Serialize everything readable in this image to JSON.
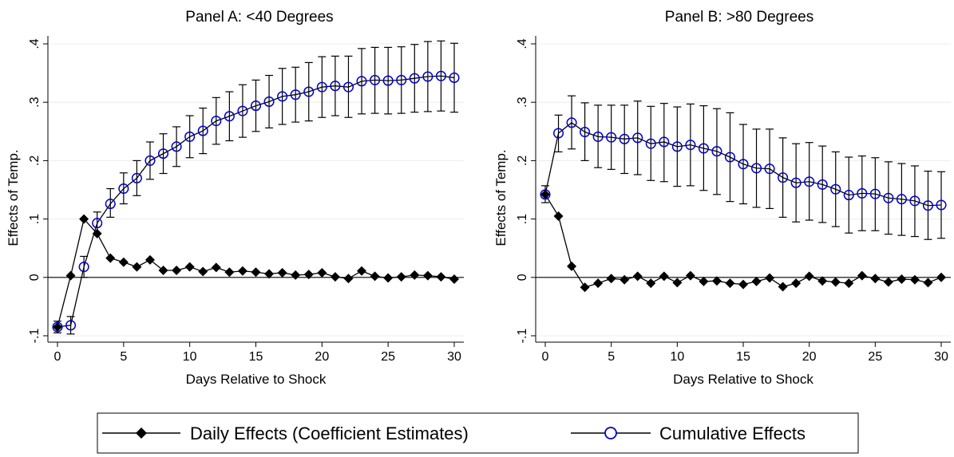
{
  "chart_data": [
    {
      "type": "line",
      "title": "Panel A: <40 Degrees",
      "xlabel": "Days Relative to Shock",
      "ylabel": "Effects of Temp.",
      "xlim": [
        0,
        30
      ],
      "ylim": [
        -0.1,
        0.4
      ],
      "xticks": [
        0,
        5,
        10,
        15,
        20,
        25,
        30
      ],
      "xtick_labels": [
        "0",
        "5",
        "10",
        "15",
        "20",
        "25",
        "30"
      ],
      "yticks": [
        -0.1,
        0,
        0.1,
        0.2,
        0.3,
        0.4
      ],
      "ytick_labels": [
        "-.1",
        "0",
        ".1",
        ".2",
        ".3",
        ".4"
      ],
      "grid": "horizontal",
      "x": [
        0,
        1,
        2,
        3,
        4,
        5,
        6,
        7,
        8,
        9,
        10,
        11,
        12,
        13,
        14,
        15,
        16,
        17,
        18,
        19,
        20,
        21,
        22,
        23,
        24,
        25,
        26,
        27,
        28,
        29,
        30
      ],
      "series": [
        {
          "name": "Daily Effects (Coefficient Estimates)",
          "marker": "diamond",
          "color": "#000000",
          "values": [
            -0.085,
            0.003,
            0.1,
            0.075,
            0.033,
            0.026,
            0.018,
            0.03,
            0.012,
            0.012,
            0.018,
            0.01,
            0.017,
            0.009,
            0.011,
            0.009,
            0.006,
            0.008,
            0.004,
            0.005,
            0.008,
            0.001,
            -0.002,
            0.011,
            0.002,
            -0.001,
            0.001,
            0.004,
            0.003,
            0.001,
            -0.003
          ]
        },
        {
          "name": "Cumulative Effects",
          "marker": "hollow-circle",
          "color": "#0000cc",
          "values": [
            -0.085,
            -0.082,
            0.018,
            0.093,
            0.126,
            0.152,
            0.17,
            0.2,
            0.212,
            0.224,
            0.241,
            0.251,
            0.268,
            0.276,
            0.285,
            0.294,
            0.301,
            0.31,
            0.313,
            0.318,
            0.326,
            0.328,
            0.326,
            0.336,
            0.338,
            0.337,
            0.338,
            0.341,
            0.344,
            0.345,
            0.342
          ],
          "ci_low": [
            -0.095,
            -0.097,
            0.0,
            0.075,
            0.103,
            0.126,
            0.14,
            0.168,
            0.178,
            0.19,
            0.205,
            0.212,
            0.228,
            0.234,
            0.24,
            0.25,
            0.256,
            0.262,
            0.266,
            0.268,
            0.274,
            0.277,
            0.274,
            0.28,
            0.281,
            0.28,
            0.281,
            0.283,
            0.284,
            0.285,
            0.283
          ],
          "ci_high": [
            -0.075,
            -0.067,
            0.036,
            0.112,
            0.152,
            0.179,
            0.2,
            0.232,
            0.246,
            0.258,
            0.277,
            0.29,
            0.308,
            0.318,
            0.33,
            0.338,
            0.346,
            0.358,
            0.36,
            0.368,
            0.378,
            0.379,
            0.379,
            0.392,
            0.394,
            0.394,
            0.395,
            0.399,
            0.404,
            0.405,
            0.401
          ]
        }
      ]
    },
    {
      "type": "line",
      "title": "Panel B: >80 Degrees",
      "xlabel": "Days Relative to Shock",
      "ylabel": "Effects of Temp.",
      "xlim": [
        0,
        30
      ],
      "ylim": [
        -0.1,
        0.4
      ],
      "xticks": [
        0,
        5,
        10,
        15,
        20,
        25,
        30
      ],
      "xtick_labels": [
        "0",
        "5",
        "10",
        "15",
        "20",
        "25",
        "30"
      ],
      "yticks": [
        -0.1,
        0,
        0.1,
        0.2,
        0.3,
        0.4
      ],
      "ytick_labels": [
        "-.1",
        "0",
        ".1",
        ".2",
        ".3",
        ".4"
      ],
      "grid": "horizontal",
      "x": [
        0,
        1,
        2,
        3,
        4,
        5,
        6,
        7,
        8,
        9,
        10,
        11,
        12,
        13,
        14,
        15,
        16,
        17,
        18,
        19,
        20,
        21,
        22,
        23,
        24,
        25,
        26,
        27,
        28,
        29,
        30
      ],
      "series": [
        {
          "name": "Daily Effects (Coefficient Estimates)",
          "marker": "diamond",
          "color": "#000000",
          "values": [
            0.142,
            0.105,
            0.019,
            -0.017,
            -0.01,
            -0.002,
            -0.004,
            0.002,
            -0.01,
            0.002,
            -0.009,
            0.003,
            -0.007,
            -0.006,
            -0.01,
            -0.012,
            -0.007,
            -0.001,
            -0.016,
            -0.01,
            0.002,
            -0.006,
            -0.008,
            -0.01,
            0.003,
            -0.002,
            -0.008,
            -0.003,
            -0.004,
            -0.009,
            0.0
          ]
        },
        {
          "name": "Cumulative Effects",
          "marker": "hollow-circle",
          "color": "#0000cc",
          "values": [
            0.142,
            0.247,
            0.265,
            0.249,
            0.241,
            0.24,
            0.237,
            0.239,
            0.229,
            0.232,
            0.224,
            0.227,
            0.221,
            0.216,
            0.206,
            0.194,
            0.187,
            0.186,
            0.171,
            0.162,
            0.164,
            0.159,
            0.151,
            0.141,
            0.144,
            0.143,
            0.136,
            0.134,
            0.131,
            0.123,
            0.124
          ],
          "ci_low": [
            0.128,
            0.215,
            0.22,
            0.2,
            0.188,
            0.185,
            0.178,
            0.176,
            0.166,
            0.164,
            0.156,
            0.157,
            0.149,
            0.142,
            0.13,
            0.126,
            0.12,
            0.118,
            0.103,
            0.095,
            0.098,
            0.094,
            0.087,
            0.076,
            0.08,
            0.08,
            0.074,
            0.072,
            0.07,
            0.065,
            0.067
          ],
          "ci_high": [
            0.157,
            0.278,
            0.311,
            0.299,
            0.295,
            0.295,
            0.295,
            0.302,
            0.293,
            0.298,
            0.292,
            0.297,
            0.294,
            0.289,
            0.282,
            0.262,
            0.254,
            0.254,
            0.239,
            0.229,
            0.231,
            0.225,
            0.215,
            0.206,
            0.208,
            0.205,
            0.198,
            0.195,
            0.191,
            0.182,
            0.181
          ]
        }
      ]
    }
  ],
  "legend": {
    "position": "bottom",
    "items": [
      {
        "label": "Daily Effects (Coefficient Estimates)",
        "marker": "diamond",
        "color": "#000000"
      },
      {
        "label": "Cumulative Effects",
        "marker": "hollow-circle",
        "color": "#0000cc"
      }
    ]
  }
}
